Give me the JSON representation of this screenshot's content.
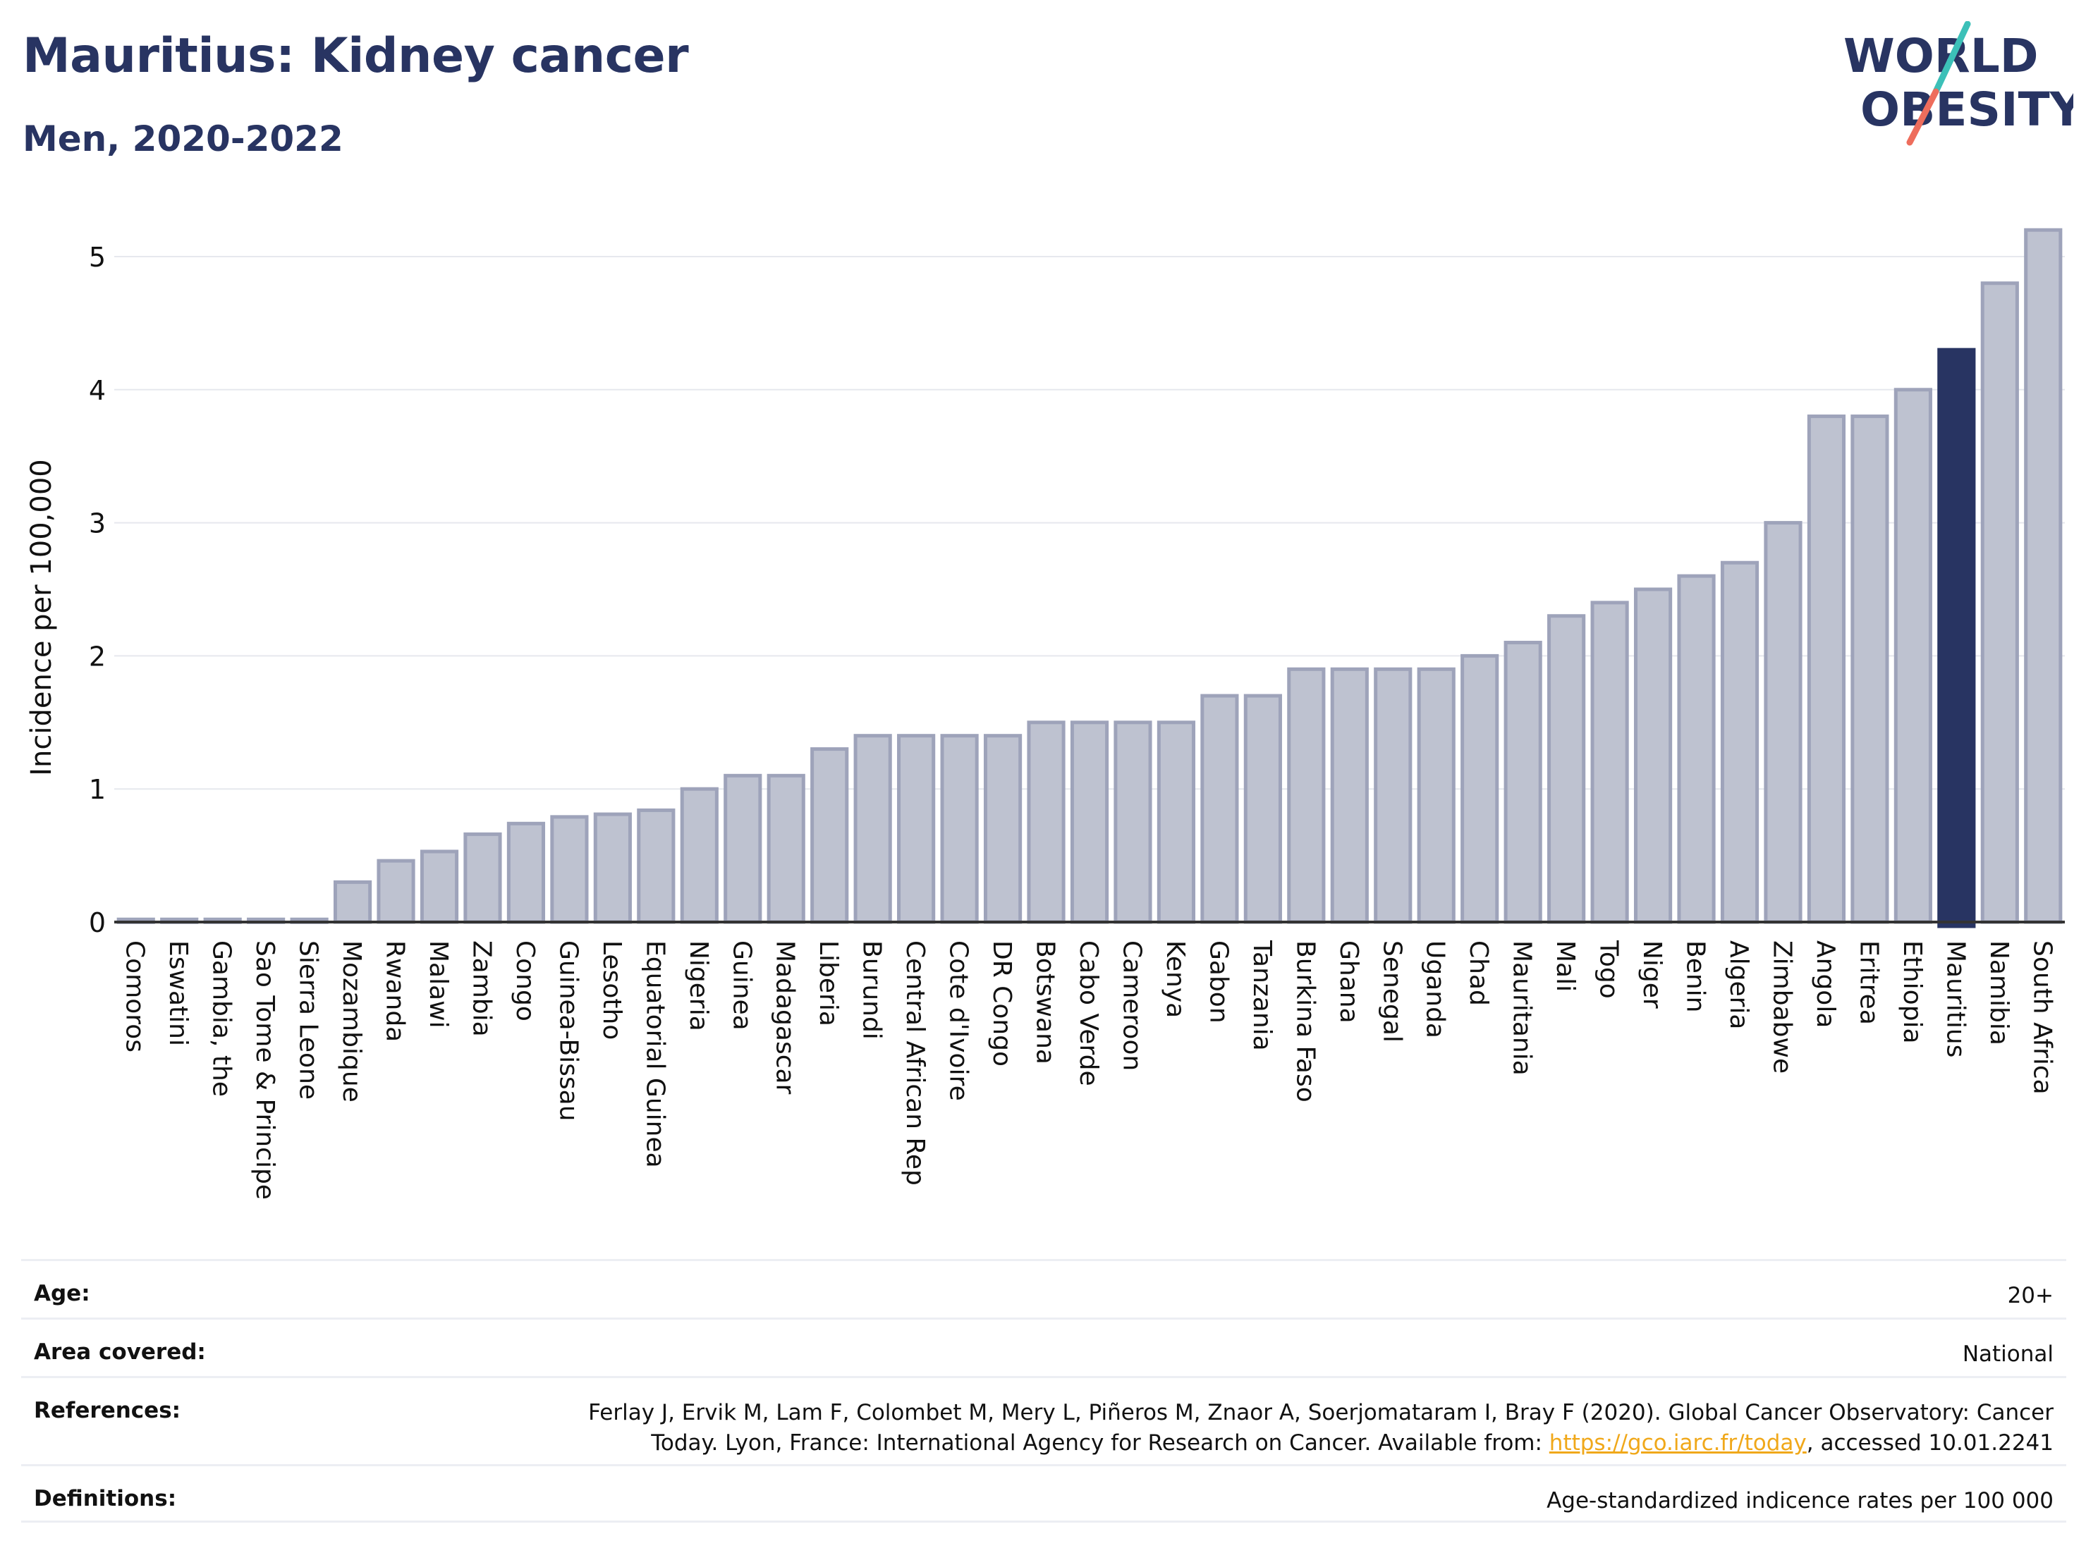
{
  "header": {
    "title": "Mauritius: Kidney cancer",
    "subtitle": "Men, 2020-2022"
  },
  "logo": {
    "line1": "WORLD",
    "line2": "OBESITY"
  },
  "chart_data": {
    "type": "bar",
    "categories": [
      "Comoros",
      "Eswatini",
      "Gambia, the",
      "Sao Tome & Principe",
      "Sierra Leone",
      "Mozambique",
      "Rwanda",
      "Malawi",
      "Zambia",
      "Congo",
      "Guinea-Bissau",
      "Lesotho",
      "Equatorial Guinea",
      "Nigeria",
      "Guinea",
      "Madagascar",
      "Liberia",
      "Burundi",
      "Central African Rep",
      "Cote d'Ivoire",
      "DR Congo",
      "Botswana",
      "Cabo Verde",
      "Cameroon",
      "Kenya",
      "Gabon",
      "Tanzania",
      "Burkina Faso",
      "Ghana",
      "Senegal",
      "Uganda",
      "Chad",
      "Mauritania",
      "Mali",
      "Togo",
      "Niger",
      "Benin",
      "Algeria",
      "Zimbabwe",
      "Angola",
      "Eritrea",
      "Ethiopia",
      "Mauritius",
      "Namibia",
      "South Africa"
    ],
    "values": [
      0,
      0,
      0,
      0,
      0,
      0.3,
      0.46,
      0.53,
      0.66,
      0.74,
      0.79,
      0.81,
      0.84,
      1.0,
      1.1,
      1.1,
      1.3,
      1.4,
      1.4,
      1.4,
      1.4,
      1.5,
      1.5,
      1.5,
      1.5,
      1.7,
      1.7,
      1.9,
      1.9,
      1.9,
      1.9,
      2.0,
      2.1,
      2.3,
      2.4,
      2.5,
      2.6,
      2.7,
      3.0,
      3.8,
      3.8,
      4.0,
      4.3,
      4.8,
      5.2
    ],
    "highlight": "Mauritius",
    "ylabel": "Incidence per 100,000",
    "xlabel": "",
    "ylim": [
      0,
      5.5
    ],
    "yticks": [
      0,
      1,
      2,
      3,
      4,
      5
    ],
    "grid": true,
    "colors": {
      "bar": "#bec2d0",
      "bar_border": "#9ea3ba",
      "highlight": "#283462",
      "grid": "#e6e8ee",
      "axis": "#333333"
    }
  },
  "meta": {
    "age_label": "Age:",
    "age_value": "20+",
    "area_label": "Area covered:",
    "area_value": "National",
    "references_label": "References:",
    "references_line1": "Ferlay J, Ervik M, Lam F, Colombet M, Mery L, Piñeros M, Znaor A, Soerjomataram I, Bray F (2020). Global Cancer Observatory: Cancer",
    "references_line2_pre": "Today. Lyon, France: International Agency for Research on Cancer. Available from: ",
    "references_link": "https://gco.iarc.fr/today",
    "references_line2_post": ", accessed 10.01.2241",
    "definitions_label": "Definitions:",
    "definitions_value": "Age-standardized indicence rates per 100 000"
  }
}
